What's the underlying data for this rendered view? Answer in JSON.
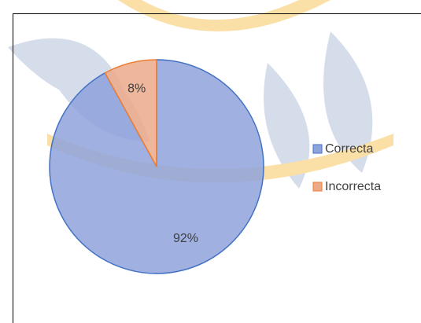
{
  "chart_data": {
    "type": "pie",
    "categories": [
      "Correcta",
      "Incorrecta"
    ],
    "values": [
      92,
      8
    ],
    "value_labels": [
      "92%",
      "8%"
    ],
    "colors": [
      "#8ea2dc",
      "#eba98a"
    ],
    "legend": "right"
  }
}
